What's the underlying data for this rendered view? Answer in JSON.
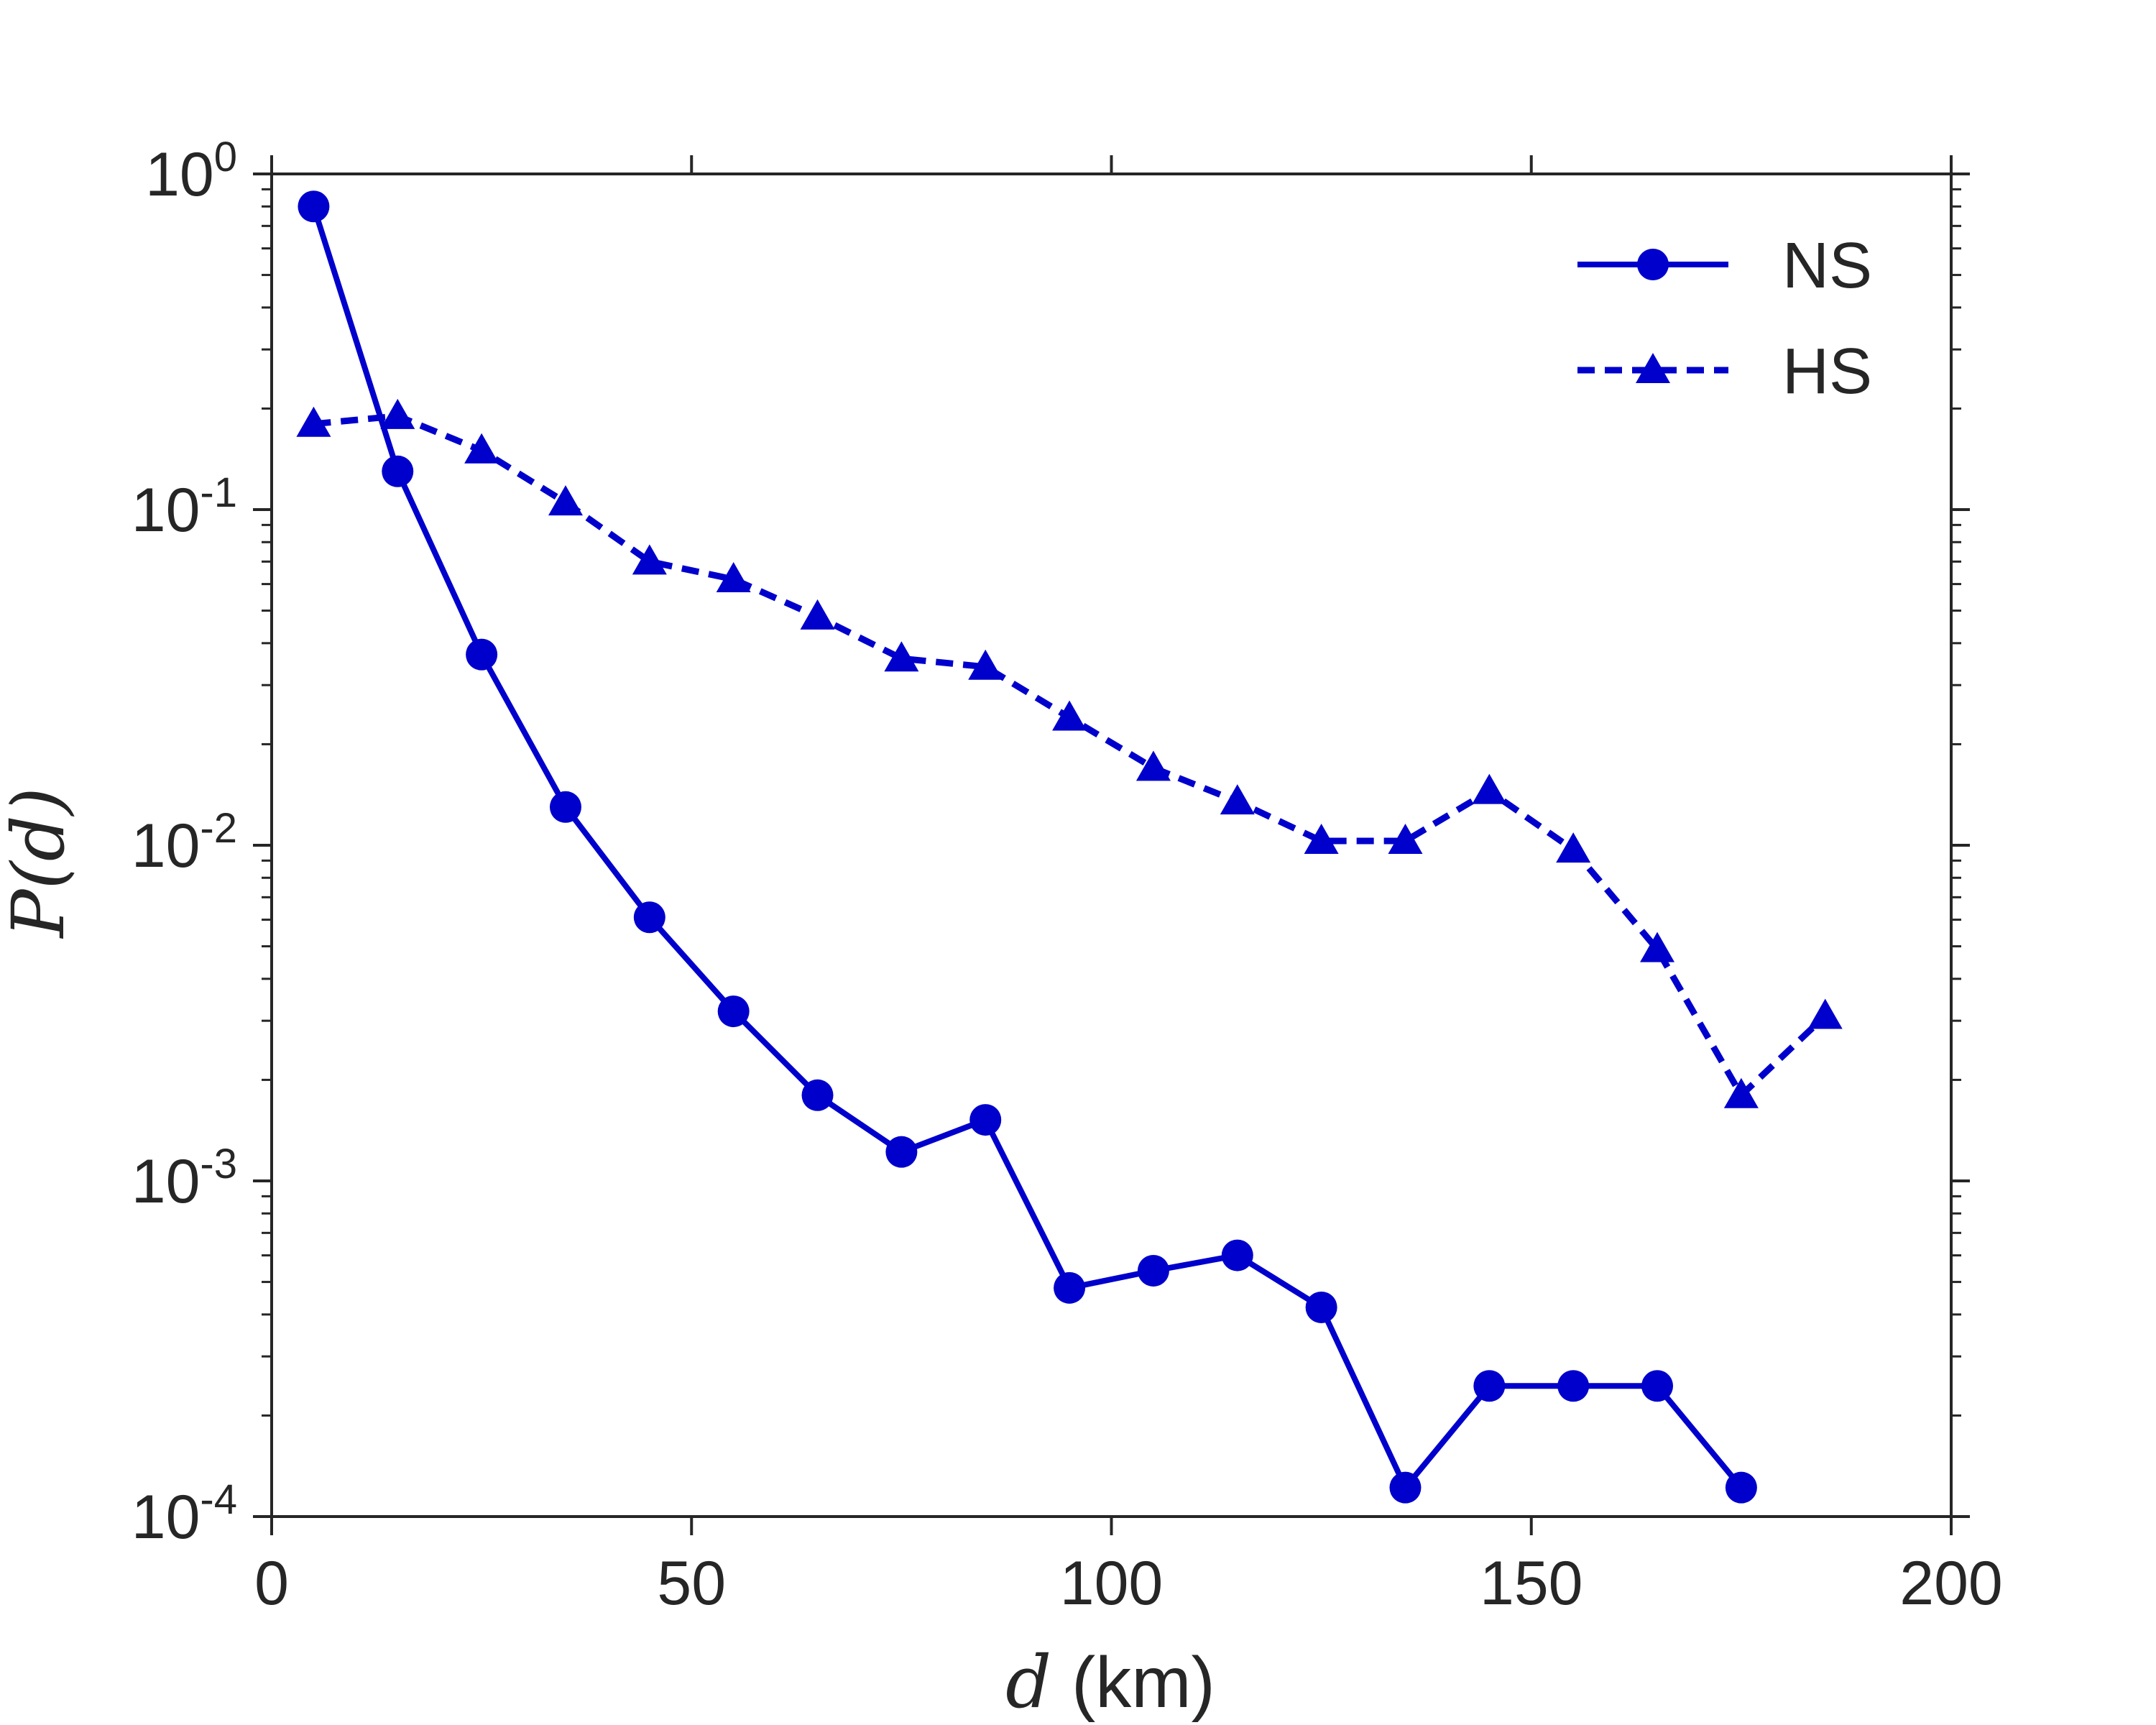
{
  "chart_data": {
    "type": "line",
    "x_scale": "linear",
    "y_scale": "log",
    "xlim": [
      0,
      200
    ],
    "ylim": [
      0.0001,
      1
    ],
    "x_ticks": [
      {
        "value": 0,
        "label": "0"
      },
      {
        "value": 50,
        "label": "50"
      },
      {
        "value": 100,
        "label": "100"
      },
      {
        "value": 150,
        "label": "150"
      },
      {
        "value": 200,
        "label": "200"
      }
    ],
    "y_ticks": [
      {
        "value": 1,
        "base": "10",
        "exp": "0"
      },
      {
        "value": 0.1,
        "base": "10",
        "exp": "-1"
      },
      {
        "value": 0.01,
        "base": "10",
        "exp": "-2"
      },
      {
        "value": 0.001,
        "base": "10",
        "exp": "-3"
      },
      {
        "value": 0.0001,
        "base": "10",
        "exp": "-4"
      }
    ],
    "xlabel": {
      "var": "d",
      "unit": " (km)"
    },
    "ylabel": {
      "func": "P",
      "open": "(",
      "var": "d",
      "close": ")"
    },
    "grid": false,
    "legend_position": "top-right",
    "series": [
      {
        "name": "NS",
        "color": "#0000cc",
        "line_style": "solid",
        "marker": "circle",
        "x": [
          5,
          15,
          25,
          35,
          45,
          55,
          65,
          75,
          85,
          95,
          105,
          115,
          125,
          135,
          145,
          155,
          165,
          175
        ],
        "y": [
          0.8,
          0.13,
          0.037,
          0.013,
          0.0061,
          0.0032,
          0.0018,
          0.00122,
          0.00152,
          0.00048,
          0.00054,
          0.0006,
          0.00042,
          0.000122,
          0.000245,
          0.000245,
          0.000245,
          0.000122
        ]
      },
      {
        "name": "HS",
        "color": "#0000cc",
        "line_style": "dashed",
        "marker": "triangle",
        "x": [
          5,
          15,
          25,
          35,
          45,
          55,
          65,
          75,
          85,
          95,
          105,
          115,
          125,
          135,
          145,
          155,
          165,
          175,
          185
        ],
        "y": [
          0.18,
          0.19,
          0.15,
          0.105,
          0.07,
          0.062,
          0.048,
          0.036,
          0.034,
          0.024,
          0.017,
          0.0135,
          0.0103,
          0.0103,
          0.0145,
          0.0097,
          0.0049,
          0.0018,
          0.0031
        ]
      }
    ]
  }
}
